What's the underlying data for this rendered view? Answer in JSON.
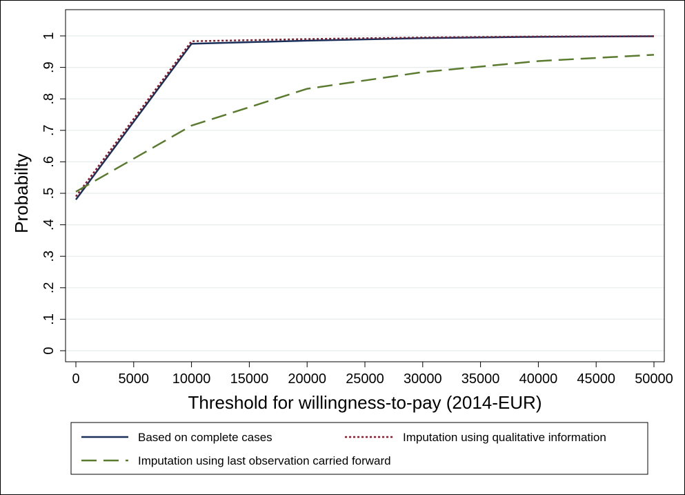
{
  "chart_data": {
    "type": "line",
    "xlabel": "Threshold for willingness-to-pay (2014-EUR)",
    "ylabel": "Probabilty",
    "xlim": [
      0,
      50000
    ],
    "ylim": [
      0,
      1
    ],
    "x_ticks": [
      0,
      5000,
      10000,
      15000,
      20000,
      25000,
      30000,
      35000,
      40000,
      45000,
      50000
    ],
    "x_tick_labels": [
      "0",
      "5000",
      "10000",
      "15000",
      "20000",
      "25000",
      "30000",
      "35000",
      "40000",
      "45000",
      "50000"
    ],
    "y_ticks": [
      0,
      0.1,
      0.2,
      0.3,
      0.4,
      0.5,
      0.6,
      0.7,
      0.8,
      0.9,
      1
    ],
    "y_tick_labels": [
      "0",
      ".1",
      ".2",
      ".3",
      ".4",
      ".5",
      ".6",
      ".7",
      ".8",
      ".9",
      "1"
    ],
    "grid": true,
    "legend_position": "bottom",
    "series": [
      {
        "name": "Based on complete cases",
        "color": "#1a2f5a",
        "style": "solid",
        "x": [
          0,
          10000,
          20000,
          30000,
          40000,
          50000
        ],
        "y": [
          0.48,
          0.975,
          0.985,
          0.993,
          0.997,
          0.999
        ]
      },
      {
        "name": "Imputation using qualitative information",
        "color": "#8b1a2a",
        "style": "dotted",
        "x": [
          0,
          10000,
          20000,
          30000,
          40000,
          50000
        ],
        "y": [
          0.49,
          0.983,
          0.99,
          0.995,
          0.998,
          0.999
        ]
      },
      {
        "name": "Imputation using last observation carried forward",
        "color": "#5a7a2e",
        "style": "longdash",
        "x": [
          0,
          10000,
          20000,
          30000,
          40000,
          50000
        ],
        "y": [
          0.505,
          0.715,
          0.832,
          0.885,
          0.92,
          0.94
        ]
      }
    ]
  }
}
